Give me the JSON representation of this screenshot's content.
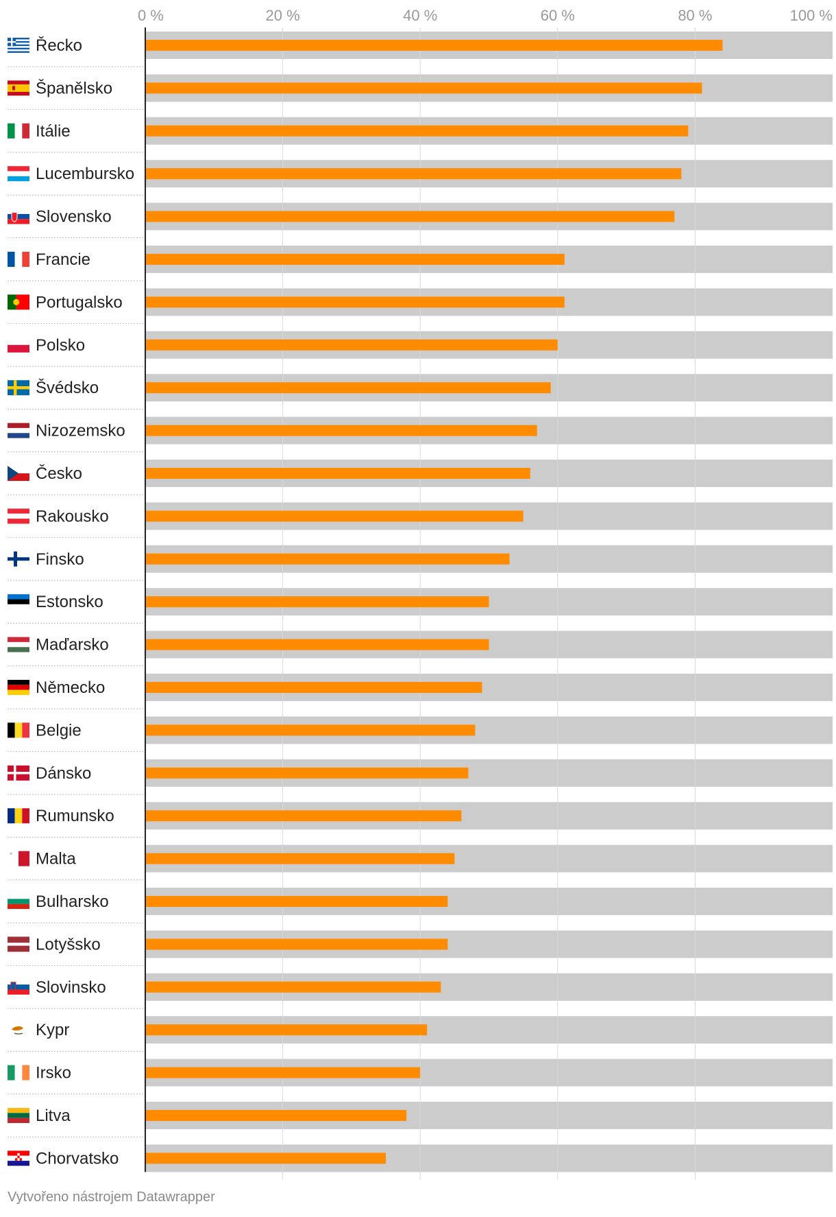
{
  "chart_data": {
    "type": "bar",
    "orientation": "horizontal",
    "title": "",
    "xlabel": "",
    "ylabel": "",
    "xlim": [
      0,
      100
    ],
    "tick_labels": [
      "0 %",
      "20 %",
      "40 %",
      "60 %",
      "80 %",
      "100 %"
    ],
    "grid": true,
    "categories": [
      "Řecko",
      "Španělsko",
      "Itálie",
      "Lucembursko",
      "Slovensko",
      "Francie",
      "Portugalsko",
      "Polsko",
      "Švédsko",
      "Nizozemsko",
      "Česko",
      "Rakousko",
      "Finsko",
      "Estonsko",
      "Maďarsko",
      "Německo",
      "Belgie",
      "Dánsko",
      "Rumunsko",
      "Malta",
      "Bulharsko",
      "Lotyšsko",
      "Slovinsko",
      "Kypr",
      "Irsko",
      "Litva",
      "Chorvatsko"
    ],
    "values": [
      84,
      81,
      79,
      78,
      77,
      61,
      61,
      60,
      59,
      57,
      56,
      55,
      53,
      50,
      50,
      49,
      48,
      47,
      46,
      45,
      44,
      44,
      43,
      41,
      40,
      38,
      35
    ],
    "flags": [
      "greece-flag",
      "spain-flag",
      "italy-flag",
      "luxembourg-flag",
      "slovakia-flag",
      "france-flag",
      "portugal-flag",
      "poland-flag",
      "sweden-flag",
      "netherlands-flag",
      "czechia-flag",
      "austria-flag",
      "finland-flag",
      "estonia-flag",
      "hungary-flag",
      "germany-flag",
      "belgium-flag",
      "denmark-flag",
      "romania-flag",
      "malta-flag",
      "bulgaria-flag",
      "latvia-flag",
      "slovenia-flag",
      "cyprus-flag",
      "ireland-flag",
      "lithuania-flag",
      "croatia-flag"
    ],
    "colors": {
      "bar": "#ff8c00",
      "track": "#cccccc",
      "grid": "#d9d9d9",
      "axis": "#222222",
      "tick_text": "#999999"
    }
  },
  "credit": "Vytvořeno nástrojem Datawrapper"
}
